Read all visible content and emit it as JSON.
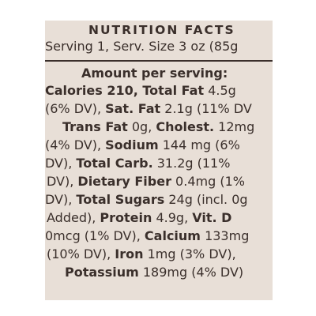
{
  "label": {
    "title": "NUTRITION FACTS",
    "serving": "Serving 1, Serv. Size 3 oz (85g",
    "amount_per_serving": "Amount per serving:",
    "lines": [
      [
        "Calories 210, Total Fat",
        " 4.5g"
      ],
      [
        "(6% DV), ",
        "Sat. Fat",
        " 2.1g (11% DV"
      ],
      [
        "Trans Fat",
        " 0g, ",
        "Cholest.",
        " 12mg"
      ],
      [
        "(4% DV), ",
        "Sodium",
        " 144 mg (6%"
      ],
      [
        "DV), ",
        "Total Carb.",
        " 31.2g (11%"
      ],
      [
        "DV), ",
        "Dietary Fiber",
        " 0.4mg (1%"
      ],
      [
        "DV), ",
        "Total Sugars",
        " 24g (incl. 0g"
      ],
      [
        "Added), ",
        "Protein",
        " 4.9g, ",
        "Vit. D"
      ],
      [
        "0mcg (1% DV), ",
        "Calcium",
        " 133mg"
      ],
      [
        "(10% DV), ",
        "Iron",
        " 1mg (3% DV),"
      ],
      [
        "Potassium",
        " 189mg (4% DV)"
      ]
    ]
  }
}
